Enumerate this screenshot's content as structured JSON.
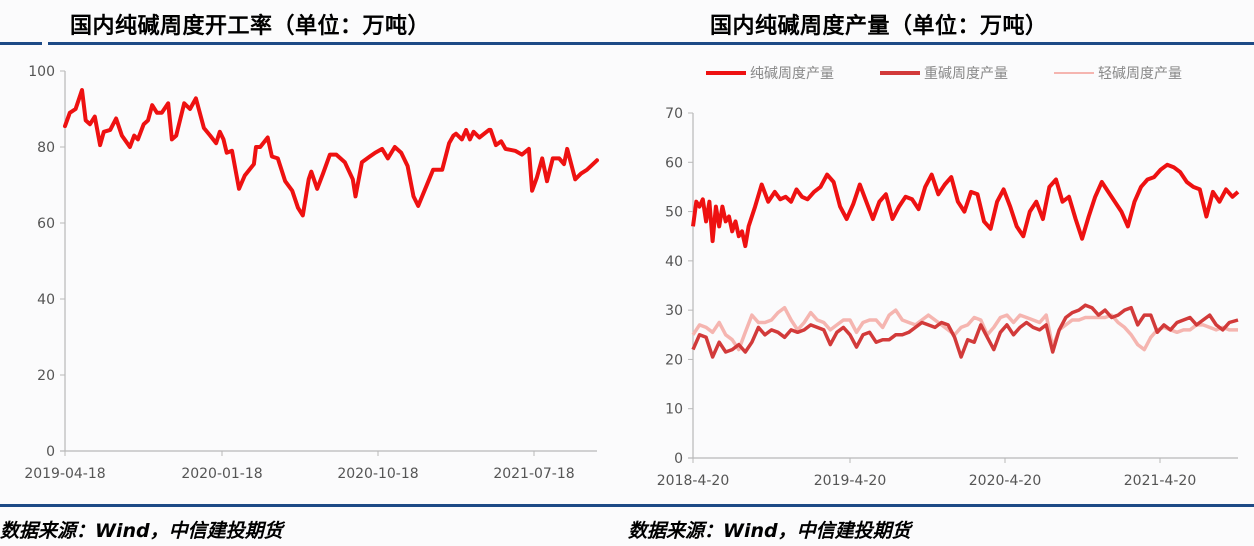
{
  "left": {
    "title": "国内纯碱周度开工率（单位：万吨）",
    "source": "数据来源：Wind，中信建投期货"
  },
  "right": {
    "title": "国内纯碱周度产量（单位：万吨）",
    "source": "数据来源：Wind，中信建投期货"
  },
  "colors": {
    "rule": "#1d4a86",
    "axis": "#b8b8b8",
    "soda_ash": "#ee1111",
    "heavy": "#d23a3a",
    "light": "#f5b5b0"
  },
  "chart_data": [
    {
      "type": "line",
      "title": "国内纯碱周度开工率（单位：万吨）",
      "xlabel": "",
      "ylabel": "",
      "ylim": [
        0,
        100
      ],
      "yticks": [
        0,
        20,
        40,
        60,
        80,
        100
      ],
      "xticks": [
        "2019-04-18",
        "2020-01-18",
        "2020-10-18",
        "2021-07-18"
      ],
      "grid": false,
      "legend": null,
      "series": [
        {
          "name": "开工率",
          "color": "#ee1111",
          "x_frac": [
            0,
            0.009,
            0.02,
            0.032,
            0.039,
            0.047,
            0.056,
            0.066,
            0.073,
            0.085,
            0.096,
            0.107,
            0.122,
            0.13,
            0.137,
            0.148,
            0.156,
            0.164,
            0.173,
            0.182,
            0.194,
            0.201,
            0.209,
            0.224,
            0.235,
            0.246,
            0.261,
            0.273,
            0.284,
            0.291,
            0.298,
            0.304,
            0.314,
            0.327,
            0.338,
            0.355,
            0.359,
            0.367,
            0.381,
            0.389,
            0.4,
            0.414,
            0.427,
            0.438,
            0.447,
            0.458,
            0.463,
            0.474,
            0.485,
            0.498,
            0.51,
            0.526,
            0.541,
            0.546,
            0.558,
            0.573,
            0.583,
            0.596,
            0.607,
            0.62,
            0.632,
            0.644,
            0.655,
            0.664,
            0.683,
            0.692,
            0.709,
            0.722,
            0.73,
            0.735,
            0.746,
            0.754,
            0.761,
            0.768,
            0.779,
            0.797,
            0.8,
            0.81,
            0.82,
            0.828,
            0.846,
            0.859,
            0.872,
            0.878,
            0.887,
            0.897,
            0.906,
            0.917,
            0.929,
            0.938,
            0.944,
            0.959,
            0.97,
            0.981,
            1.0
          ],
          "values": [
            85.5,
            89,
            90,
            95,
            87,
            86,
            88,
            80.5,
            84,
            84.5,
            87.5,
            83,
            80,
            83,
            82,
            86,
            87,
            91,
            89,
            89,
            91.5,
            82,
            83,
            91.5,
            90,
            92.8,
            85,
            83,
            81,
            84,
            82,
            78.5,
            79,
            69,
            72.5,
            75.5,
            80,
            80,
            82.5,
            77.5,
            77,
            71,
            68.5,
            64,
            62,
            71.5,
            73.5,
            69,
            73,
            78,
            78,
            76,
            71.5,
            67,
            76,
            77.5,
            78.5,
            79.5,
            77,
            80,
            78.5,
            75,
            67,
            64.5,
            71,
            74,
            74,
            81,
            83,
            83.5,
            82,
            84.5,
            82,
            84,
            82.5,
            84.5,
            84.5,
            80.5,
            81.5,
            79.5,
            79,
            78,
            79.5,
            68.5,
            72,
            77,
            71,
            77,
            77,
            75.5,
            79.5,
            71.5,
            73,
            74,
            76.5
          ]
        }
      ]
    },
    {
      "type": "line",
      "title": "国内纯碱周度产量（单位：万吨）",
      "xlabel": "",
      "ylabel": "",
      "ylim": [
        0,
        70
      ],
      "yticks": [
        0,
        10,
        20,
        30,
        40,
        50,
        60,
        70
      ],
      "xticks": [
        "2018-4-20",
        "2019-4-20",
        "2020-4-20",
        "2021-4-20"
      ],
      "grid": false,
      "legend": {
        "position": "top",
        "entries": [
          "纯碱周度产量",
          "重碱周度产量",
          "轻碱周度产量"
        ]
      },
      "series": [
        {
          "name": "纯碱周度产量",
          "color": "#ee1111",
          "x_frac": [
            0,
            0.006,
            0.012,
            0.018,
            0.024,
            0.03,
            0.036,
            0.042,
            0.048,
            0.054,
            0.06,
            0.066,
            0.072,
            0.078,
            0.084,
            0.09,
            0.096,
            0.102,
            0.114,
            0.126,
            0.138,
            0.15,
            0.16,
            0.17,
            0.18,
            0.19,
            0.2,
            0.21,
            0.222,
            0.234,
            0.246,
            0.258,
            0.27,
            0.282,
            0.294,
            0.306,
            0.318,
            0.33,
            0.342,
            0.354,
            0.366,
            0.378,
            0.39,
            0.402,
            0.414,
            0.426,
            0.438,
            0.45,
            0.462,
            0.474,
            0.486,
            0.498,
            0.51,
            0.522,
            0.534,
            0.546,
            0.558,
            0.57,
            0.582,
            0.594,
            0.606,
            0.618,
            0.63,
            0.642,
            0.654,
            0.666,
            0.678,
            0.69,
            0.702,
            0.714,
            0.726,
            0.738,
            0.75,
            0.762,
            0.774,
            0.786,
            0.798,
            0.81,
            0.822,
            0.834,
            0.846,
            0.858,
            0.87,
            0.882,
            0.894,
            0.906,
            0.918,
            0.93,
            0.942,
            0.954,
            0.966,
            0.978,
            0.99,
            1.0
          ],
          "values": [
            47,
            52,
            51,
            52.5,
            48,
            52,
            44,
            51,
            47,
            51,
            48,
            49,
            46,
            48,
            45,
            46,
            43,
            47,
            51,
            55.5,
            52,
            54,
            52.5,
            53,
            52,
            54.5,
            53,
            52.5,
            54,
            55,
            57.5,
            56,
            51,
            48.5,
            51.5,
            55.5,
            52,
            48.5,
            52,
            53.5,
            48.5,
            51,
            53,
            52.5,
            50.5,
            55,
            57.5,
            53.5,
            55.5,
            57,
            52,
            50,
            54,
            53.5,
            48,
            46.5,
            52,
            54.5,
            51,
            47,
            45,
            50,
            52,
            48.5,
            55,
            56.5,
            52,
            53,
            48.5,
            44.5,
            49,
            53,
            56,
            54,
            52,
            50,
            47,
            52,
            55,
            56.5,
            57,
            58.5,
            59.5,
            59,
            58,
            56,
            55,
            54.5,
            49,
            54,
            52,
            54.5,
            53,
            54
          ]
        },
        {
          "name": "重碱周度产量",
          "color": "#d23a3a",
          "x_frac": [
            0,
            0.012,
            0.024,
            0.036,
            0.048,
            0.06,
            0.072,
            0.084,
            0.096,
            0.108,
            0.12,
            0.132,
            0.144,
            0.156,
            0.168,
            0.18,
            0.192,
            0.204,
            0.216,
            0.228,
            0.24,
            0.252,
            0.264,
            0.276,
            0.288,
            0.3,
            0.312,
            0.324,
            0.336,
            0.348,
            0.36,
            0.372,
            0.384,
            0.396,
            0.408,
            0.42,
            0.432,
            0.444,
            0.456,
            0.468,
            0.48,
            0.492,
            0.504,
            0.516,
            0.528,
            0.54,
            0.552,
            0.564,
            0.576,
            0.588,
            0.6,
            0.612,
            0.624,
            0.636,
            0.648,
            0.66,
            0.672,
            0.684,
            0.696,
            0.708,
            0.72,
            0.732,
            0.744,
            0.756,
            0.768,
            0.78,
            0.792,
            0.804,
            0.816,
            0.828,
            0.84,
            0.852,
            0.864,
            0.876,
            0.888,
            0.9,
            0.912,
            0.924,
            0.936,
            0.948,
            0.96,
            0.972,
            0.984,
            1.0
          ],
          "values": [
            22,
            25,
            24.5,
            20.5,
            23.5,
            21.5,
            22,
            23,
            21.5,
            23.5,
            26.5,
            25,
            26,
            25.5,
            24.5,
            26,
            25.5,
            26,
            27,
            26.5,
            26,
            23,
            25.5,
            26.5,
            25,
            22.5,
            25,
            25.5,
            23.5,
            24,
            24,
            25,
            25,
            25.5,
            26.5,
            27.5,
            27,
            26.5,
            27.5,
            27,
            24.5,
            20.5,
            24,
            23.5,
            27,
            24.5,
            22,
            25.5,
            27,
            25,
            26.5,
            27.5,
            26.5,
            26,
            27,
            21.5,
            26,
            28.5,
            29.5,
            30,
            31,
            30.5,
            29,
            30,
            28.5,
            29,
            30,
            30.5,
            27,
            29,
            29,
            25.5,
            27,
            26,
            27.5,
            28,
            28.5,
            27,
            28,
            29,
            27,
            26,
            27.5,
            28
          ]
        },
        {
          "name": "轻碱周度产量",
          "color": "#f5b5b0",
          "x_frac": [
            0,
            0.012,
            0.024,
            0.036,
            0.048,
            0.06,
            0.072,
            0.084,
            0.096,
            0.108,
            0.12,
            0.132,
            0.144,
            0.156,
            0.168,
            0.18,
            0.192,
            0.204,
            0.216,
            0.228,
            0.24,
            0.252,
            0.264,
            0.276,
            0.288,
            0.3,
            0.312,
            0.324,
            0.336,
            0.348,
            0.36,
            0.372,
            0.384,
            0.396,
            0.408,
            0.42,
            0.432,
            0.444,
            0.456,
            0.468,
            0.48,
            0.492,
            0.504,
            0.516,
            0.528,
            0.54,
            0.552,
            0.564,
            0.576,
            0.588,
            0.6,
            0.612,
            0.624,
            0.636,
            0.648,
            0.66,
            0.672,
            0.684,
            0.696,
            0.708,
            0.72,
            0.732,
            0.744,
            0.756,
            0.768,
            0.78,
            0.792,
            0.804,
            0.816,
            0.828,
            0.84,
            0.852,
            0.864,
            0.876,
            0.888,
            0.9,
            0.912,
            0.924,
            0.936,
            0.948,
            0.96,
            0.972,
            0.984,
            1.0
          ],
          "values": [
            25,
            27,
            26.5,
            25.5,
            27.5,
            25,
            24,
            22,
            25.5,
            29,
            27.5,
            27.5,
            28,
            29.5,
            30.5,
            28,
            26,
            27.5,
            29.5,
            28,
            27.5,
            26,
            27,
            28,
            28,
            25.5,
            27.5,
            28,
            28,
            26.5,
            29,
            30,
            28,
            27.5,
            27,
            28,
            29,
            28,
            27,
            26,
            25,
            26.5,
            27,
            28.5,
            28,
            25,
            26.5,
            28.5,
            29,
            27.5,
            29,
            28.5,
            28,
            27.5,
            29,
            22.5,
            26,
            27,
            28,
            28,
            28.5,
            28.5,
            28.5,
            28.5,
            29,
            27.5,
            26.5,
            25,
            23,
            22,
            24.5,
            26,
            26.5,
            26,
            25.5,
            26,
            26,
            27,
            27,
            26.5,
            26,
            26.5,
            26,
            26
          ]
        }
      ]
    }
  ]
}
